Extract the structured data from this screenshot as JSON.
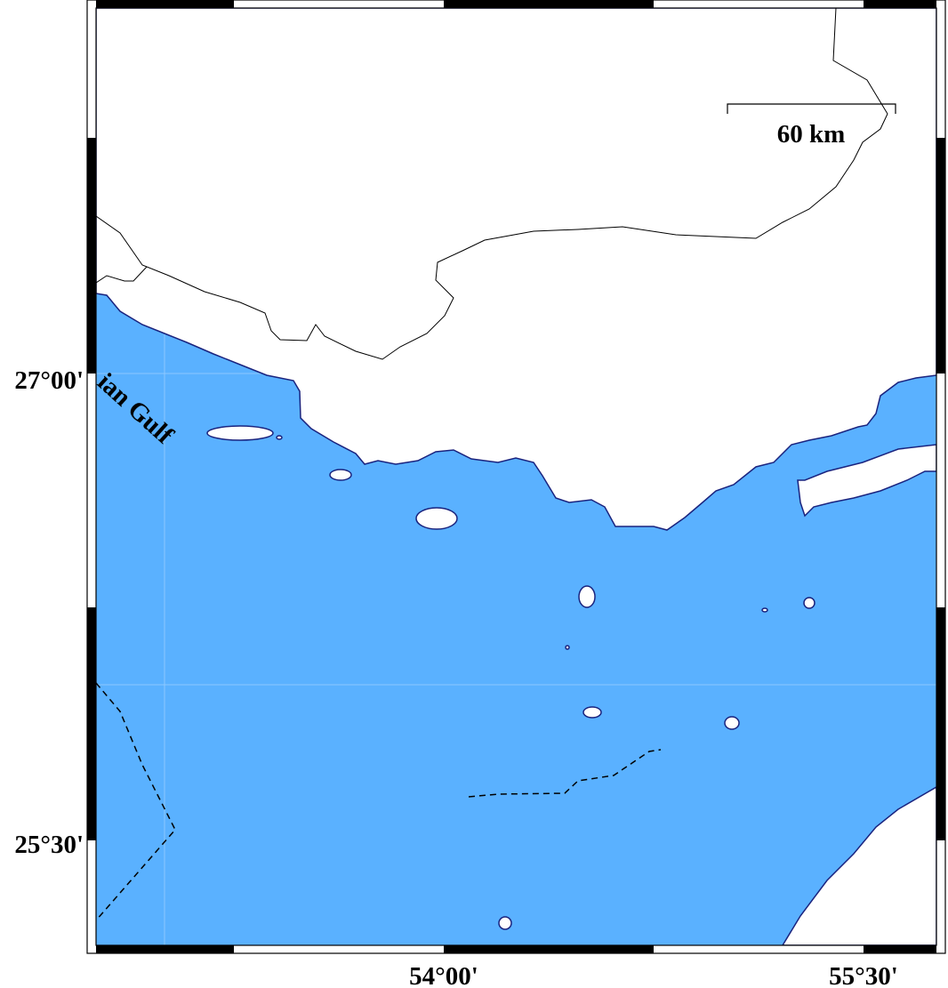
{
  "map": {
    "sea_label": "ian Gulf",
    "scale_bar": {
      "label": "60 km",
      "length_km": 60
    },
    "lat_labels": [
      "27°00'",
      "25°30'"
    ],
    "lon_labels": [
      "54°00'",
      "55°30'"
    ],
    "colors": {
      "sea": "#5AB1FF",
      "land": "#FFFFFF",
      "coastline": "#1A237E",
      "border": "#000000"
    }
  }
}
